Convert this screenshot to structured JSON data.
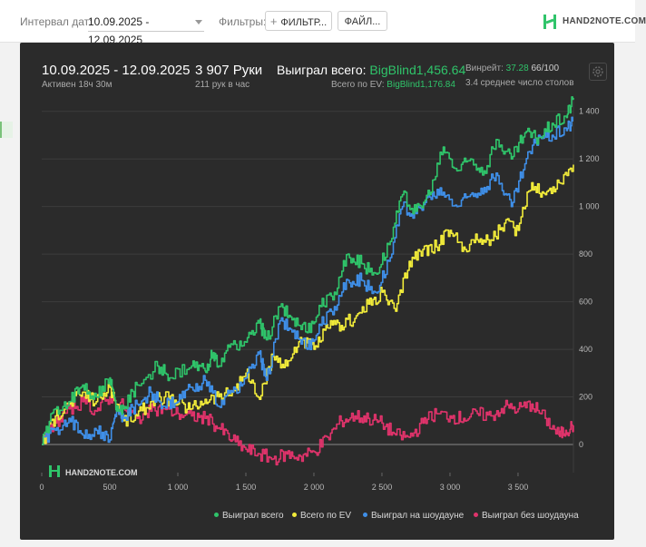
{
  "toolbar": {
    "date_label": "Интервал дат:",
    "date_value": "10.09.2025 - 12.09.2025",
    "filters_label": "Фильтры:",
    "filter_button": "ФИЛЬТР...",
    "file_button": "ФАЙЛ...",
    "logo_text": "HAND2NOTE.COM"
  },
  "header": {
    "date_range": "10.09.2025 - 12.09.2025",
    "active": "Активен 18ч 30м",
    "hands": "3 907 Руки",
    "hands_per_hour": "211 рук в час",
    "won_label": "Выиграл всего:",
    "won_value": "BigBlind1,456.64",
    "ev_label": "Всего по EV:",
    "ev_value": "BigBlind1,176.84",
    "winrate_label": "Винрейт:",
    "winrate_value": "37.28",
    "winrate_hands": "66/100",
    "tables_avg": "3.4 среднее число столов"
  },
  "watermark": "HAND2NOTE.COM",
  "colors": {
    "won": "#2fc46a",
    "ev": "#f2ec3a",
    "showdown": "#3f8fe8",
    "non_showdown": "#e0336b",
    "accent": "#2fc46a"
  },
  "chart_data": {
    "type": "line",
    "xlabel": "",
    "ylabel": "",
    "xlim": [
      0,
      3907
    ],
    "ylim": [
      -80,
      1460
    ],
    "x_ticks": [
      0,
      500,
      1000,
      1500,
      2000,
      2500,
      3000,
      3500
    ],
    "x_tick_labels": [
      "0",
      "500",
      "1 000",
      "1 500",
      "2 000",
      "2 500",
      "3 000",
      "3 500"
    ],
    "y_ticks": [
      0,
      200,
      400,
      600,
      800,
      1000,
      1200,
      1400
    ],
    "y_tick_labels": [
      "0",
      "200",
      "400",
      "600",
      "800",
      "1 000",
      "1 200",
      "1 400"
    ],
    "grid": true,
    "legend_position": "bottom",
    "series": [
      {
        "name": "Выиграл всего",
        "color": "#2fc46a",
        "points": [
          [
            0,
            0
          ],
          [
            100,
            150
          ],
          [
            200,
            180
          ],
          [
            300,
            250
          ],
          [
            400,
            200
          ],
          [
            500,
            280
          ],
          [
            550,
            140
          ],
          [
            600,
            150
          ],
          [
            700,
            250
          ],
          [
            850,
            330
          ],
          [
            950,
            280
          ],
          [
            1100,
            330
          ],
          [
            1200,
            310
          ],
          [
            1250,
            380
          ],
          [
            1300,
            330
          ],
          [
            1400,
            420
          ],
          [
            1500,
            430
          ],
          [
            1600,
            510
          ],
          [
            1650,
            440
          ],
          [
            1750,
            580
          ],
          [
            1850,
            530
          ],
          [
            1950,
            470
          ],
          [
            2050,
            580
          ],
          [
            2150,
            640
          ],
          [
            2250,
            800
          ],
          [
            2350,
            760
          ],
          [
            2450,
            720
          ],
          [
            2550,
            840
          ],
          [
            2650,
            1050
          ],
          [
            2750,
            980
          ],
          [
            2850,
            1050
          ],
          [
            2950,
            1250
          ],
          [
            3050,
            1150
          ],
          [
            3150,
            1200
          ],
          [
            3250,
            1150
          ],
          [
            3350,
            1280
          ],
          [
            3450,
            1200
          ],
          [
            3550,
            1310
          ],
          [
            3650,
            1290
          ],
          [
            3750,
            1350
          ],
          [
            3850,
            1380
          ],
          [
            3907,
            1456
          ]
        ]
      },
      {
        "name": "Всего по EV",
        "color": "#f2ec3a",
        "points": [
          [
            0,
            0
          ],
          [
            100,
            120
          ],
          [
            200,
            170
          ],
          [
            300,
            220
          ],
          [
            400,
            180
          ],
          [
            500,
            240
          ],
          [
            600,
            100
          ],
          [
            700,
            120
          ],
          [
            800,
            180
          ],
          [
            900,
            200
          ],
          [
            1000,
            170
          ],
          [
            1100,
            150
          ],
          [
            1200,
            190
          ],
          [
            1300,
            200
          ],
          [
            1400,
            220
          ],
          [
            1500,
            300
          ],
          [
            1600,
            190
          ],
          [
            1700,
            370
          ],
          [
            1800,
            330
          ],
          [
            1900,
            450
          ],
          [
            2000,
            400
          ],
          [
            2100,
            490
          ],
          [
            2200,
            500
          ],
          [
            2300,
            530
          ],
          [
            2400,
            590
          ],
          [
            2500,
            640
          ],
          [
            2600,
            560
          ],
          [
            2700,
            770
          ],
          [
            2800,
            820
          ],
          [
            2900,
            830
          ],
          [
            3000,
            900
          ],
          [
            3100,
            830
          ],
          [
            3200,
            860
          ],
          [
            3300,
            860
          ],
          [
            3400,
            930
          ],
          [
            3500,
            900
          ],
          [
            3600,
            1100
          ],
          [
            3700,
            1050
          ],
          [
            3800,
            1100
          ],
          [
            3907,
            1176
          ]
        ]
      },
      {
        "name": "Выиграл на шоудауне",
        "color": "#3f8fe8",
        "points": [
          [
            0,
            0
          ],
          [
            100,
            60
          ],
          [
            200,
            110
          ],
          [
            300,
            40
          ],
          [
            400,
            60
          ],
          [
            500,
            20
          ],
          [
            550,
            140
          ],
          [
            600,
            110
          ],
          [
            700,
            170
          ],
          [
            800,
            220
          ],
          [
            900,
            160
          ],
          [
            1000,
            180
          ],
          [
            1100,
            240
          ],
          [
            1200,
            270
          ],
          [
            1300,
            160
          ],
          [
            1400,
            220
          ],
          [
            1500,
            280
          ],
          [
            1600,
            380
          ],
          [
            1650,
            270
          ],
          [
            1750,
            520
          ],
          [
            1850,
            480
          ],
          [
            1950,
            400
          ],
          [
            2050,
            500
          ],
          [
            2150,
            580
          ],
          [
            2250,
            690
          ],
          [
            2350,
            690
          ],
          [
            2450,
            640
          ],
          [
            2550,
            770
          ],
          [
            2650,
            1000
          ],
          [
            2750,
            970
          ],
          [
            2850,
            1040
          ],
          [
            2950,
            1060
          ],
          [
            3050,
            1000
          ],
          [
            3150,
            1050
          ],
          [
            3250,
            1080
          ],
          [
            3350,
            1130
          ],
          [
            3450,
            1000
          ],
          [
            3550,
            1180
          ],
          [
            3650,
            1300
          ],
          [
            3750,
            1300
          ],
          [
            3850,
            1330
          ],
          [
            3907,
            1360
          ]
        ]
      },
      {
        "name": "Выиграл без шоудауна",
        "color": "#e0336b",
        "points": [
          [
            0,
            0
          ],
          [
            100,
            90
          ],
          [
            200,
            150
          ],
          [
            300,
            180
          ],
          [
            400,
            140
          ],
          [
            500,
            200
          ],
          [
            600,
            160
          ],
          [
            700,
            110
          ],
          [
            800,
            140
          ],
          [
            900,
            150
          ],
          [
            1000,
            130
          ],
          [
            1100,
            120
          ],
          [
            1200,
            110
          ],
          [
            1300,
            70
          ],
          [
            1400,
            20
          ],
          [
            1500,
            -20
          ],
          [
            1600,
            -40
          ],
          [
            1700,
            -60
          ],
          [
            1800,
            -40
          ],
          [
            1900,
            -50
          ],
          [
            2000,
            -30
          ],
          [
            2100,
            30
          ],
          [
            2200,
            100
          ],
          [
            2300,
            120
          ],
          [
            2400,
            110
          ],
          [
            2500,
            90
          ],
          [
            2600,
            40
          ],
          [
            2700,
            30
          ],
          [
            2800,
            90
          ],
          [
            2900,
            130
          ],
          [
            3000,
            120
          ],
          [
            3100,
            110
          ],
          [
            3200,
            130
          ],
          [
            3300,
            120
          ],
          [
            3400,
            160
          ],
          [
            3500,
            150
          ],
          [
            3600,
            170
          ],
          [
            3700,
            110
          ],
          [
            3800,
            40
          ],
          [
            3850,
            60
          ],
          [
            3907,
            80
          ]
        ]
      }
    ]
  }
}
